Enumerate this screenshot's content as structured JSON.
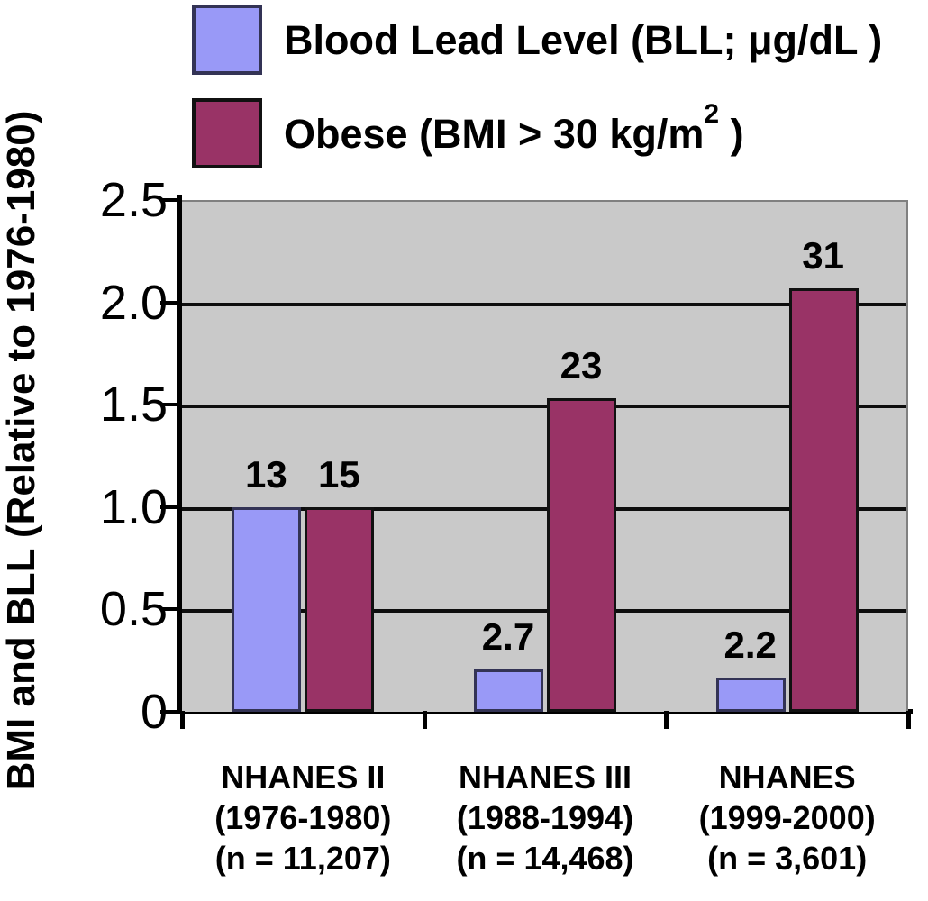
{
  "legend": {
    "items": [
      {
        "pre": "Blood Lead Level (BLL; μg/dL )",
        "sup": "",
        "post": ""
      },
      {
        "pre": "Obese (BMI > 30 kg/m",
        "sup": "2",
        "post": " )"
      }
    ]
  },
  "chart_data": {
    "type": "bar",
    "title": "",
    "xlabel": "",
    "ylabel": "BMI and BLL (Relative to 1976-1980)",
    "ylim": [
      0,
      2.5
    ],
    "yticks": [
      0,
      0.5,
      1,
      1.5,
      2,
      2.5
    ],
    "ytick_labels": [
      "0",
      "0.5",
      "1.0",
      "1.5",
      "2.0",
      "2.5"
    ],
    "grid": true,
    "plot_bg": "#C9C9C9",
    "gridline_color": "#0d0d0d",
    "legend_position": "top-left",
    "categories": [
      {
        "lines": [
          "NHANES II",
          "(1976-1980)",
          "(n = 11,207)"
        ]
      },
      {
        "lines": [
          "NHANES III",
          "(1988-1994)",
          "(n = 14,468)"
        ]
      },
      {
        "lines": [
          "NHANES",
          "(1999-2000)",
          "(n = 3,601)"
        ]
      }
    ],
    "series": [
      {
        "name": "Blood Lead Level (BLL; μg/dL)",
        "color": "#9999F7",
        "border_color": "#333355",
        "values_absolute": [
          13,
          2.7,
          2.2
        ],
        "data_labels": [
          "13",
          "2.7",
          "2.2"
        ],
        "bar_heights_relative": [
          1.0,
          0.208,
          0.169
        ]
      },
      {
        "name": "Obese (BMI > 30 kg/m2)",
        "color": "#993366",
        "border_color": "#111111",
        "values_absolute": [
          15,
          23,
          31
        ],
        "data_labels": [
          "15",
          "23",
          "31"
        ],
        "bar_heights_relative": [
          1.0,
          1.533,
          2.067
        ]
      }
    ]
  }
}
